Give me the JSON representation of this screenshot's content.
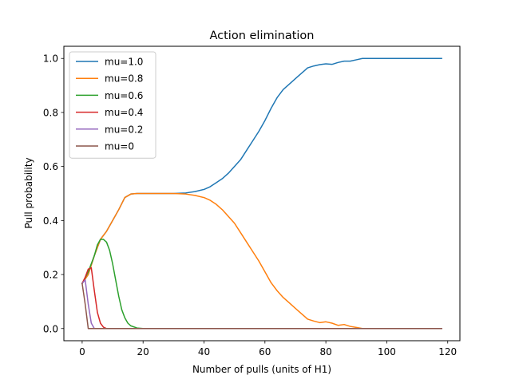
{
  "chart_data": {
    "type": "line",
    "title": "Action elimination",
    "xlabel": "Number of pulls (units of H1)",
    "ylabel": "Pull probability",
    "xlim": [
      -6,
      124
    ],
    "ylim": [
      -0.045,
      1.045
    ],
    "xticks": [
      0,
      20,
      40,
      60,
      80,
      100,
      120
    ],
    "xtick_labels": [
      "0",
      "20",
      "40",
      "60",
      "80",
      "100",
      "120"
    ],
    "yticks": [
      0.0,
      0.2,
      0.4,
      0.6,
      0.8,
      1.0
    ],
    "ytick_labels": [
      "0.0",
      "0.2",
      "0.4",
      "0.6",
      "0.8",
      "1.0"
    ],
    "grid": false,
    "legend_position": "upper-left",
    "series": [
      {
        "name": "mu=1.0",
        "color": "#1f77b4",
        "points": [
          [
            0,
            0.167
          ],
          [
            2,
            0.2
          ],
          [
            4,
            0.27
          ],
          [
            6,
            0.33
          ],
          [
            8,
            0.36
          ],
          [
            10,
            0.4
          ],
          [
            12,
            0.44
          ],
          [
            14,
            0.485
          ],
          [
            16,
            0.498
          ],
          [
            18,
            0.5
          ],
          [
            20,
            0.5
          ],
          [
            25,
            0.5
          ],
          [
            30,
            0.5
          ],
          [
            34,
            0.502
          ],
          [
            37,
            0.507
          ],
          [
            40,
            0.515
          ],
          [
            42,
            0.525
          ],
          [
            44,
            0.54
          ],
          [
            46,
            0.555
          ],
          [
            48,
            0.575
          ],
          [
            50,
            0.6
          ],
          [
            52,
            0.625
          ],
          [
            54,
            0.66
          ],
          [
            56,
            0.695
          ],
          [
            58,
            0.73
          ],
          [
            60,
            0.77
          ],
          [
            62,
            0.815
          ],
          [
            64,
            0.855
          ],
          [
            66,
            0.885
          ],
          [
            68,
            0.905
          ],
          [
            70,
            0.925
          ],
          [
            72,
            0.945
          ],
          [
            74,
            0.965
          ],
          [
            76,
            0.972
          ],
          [
            78,
            0.977
          ],
          [
            80,
            0.98
          ],
          [
            82,
            0.978
          ],
          [
            84,
            0.985
          ],
          [
            86,
            0.99
          ],
          [
            88,
            0.99
          ],
          [
            90,
            0.995
          ],
          [
            92,
            1.0
          ],
          [
            95,
            1.0
          ],
          [
            100,
            1.0
          ],
          [
            105,
            1.0
          ],
          [
            110,
            1.0
          ],
          [
            115,
            1.0
          ],
          [
            118,
            1.0
          ]
        ]
      },
      {
        "name": "mu=0.8",
        "color": "#ff7f0e",
        "points": [
          [
            0,
            0.167
          ],
          [
            2,
            0.2
          ],
          [
            4,
            0.27
          ],
          [
            6,
            0.33
          ],
          [
            8,
            0.36
          ],
          [
            10,
            0.4
          ],
          [
            12,
            0.44
          ],
          [
            14,
            0.485
          ],
          [
            16,
            0.498
          ],
          [
            18,
            0.5
          ],
          [
            20,
            0.5
          ],
          [
            25,
            0.5
          ],
          [
            30,
            0.5
          ],
          [
            34,
            0.498
          ],
          [
            37,
            0.493
          ],
          [
            40,
            0.485
          ],
          [
            42,
            0.475
          ],
          [
            44,
            0.46
          ],
          [
            46,
            0.44
          ],
          [
            48,
            0.415
          ],
          [
            50,
            0.39
          ],
          [
            52,
            0.355
          ],
          [
            54,
            0.32
          ],
          [
            56,
            0.285
          ],
          [
            58,
            0.25
          ],
          [
            60,
            0.21
          ],
          [
            62,
            0.17
          ],
          [
            64,
            0.14
          ],
          [
            66,
            0.115
          ],
          [
            68,
            0.095
          ],
          [
            70,
            0.075
          ],
          [
            72,
            0.055
          ],
          [
            74,
            0.035
          ],
          [
            76,
            0.028
          ],
          [
            78,
            0.022
          ],
          [
            80,
            0.025
          ],
          [
            82,
            0.02
          ],
          [
            84,
            0.012
          ],
          [
            86,
            0.015
          ],
          [
            88,
            0.008
          ],
          [
            90,
            0.004
          ],
          [
            92,
            0.0
          ],
          [
            95,
            0.0
          ],
          [
            100,
            0.0
          ],
          [
            105,
            0.0
          ],
          [
            110,
            0.0
          ],
          [
            115,
            0.0
          ],
          [
            118,
            0.0
          ]
        ]
      },
      {
        "name": "mu=0.6",
        "color": "#2ca02c",
        "points": [
          [
            0,
            0.167
          ],
          [
            2,
            0.21
          ],
          [
            4,
            0.27
          ],
          [
            5,
            0.31
          ],
          [
            6,
            0.33
          ],
          [
            7,
            0.33
          ],
          [
            8,
            0.32
          ],
          [
            9,
            0.29
          ],
          [
            10,
            0.24
          ],
          [
            11,
            0.18
          ],
          [
            12,
            0.12
          ],
          [
            13,
            0.07
          ],
          [
            14,
            0.04
          ],
          [
            15,
            0.02
          ],
          [
            16,
            0.01
          ],
          [
            18,
            0.002
          ],
          [
            20,
            0.0
          ],
          [
            40,
            0.0
          ],
          [
            60,
            0.0
          ],
          [
            80,
            0.0
          ],
          [
            100,
            0.0
          ],
          [
            118,
            0.0
          ]
        ]
      },
      {
        "name": "mu=0.4",
        "color": "#d62728",
        "points": [
          [
            0,
            0.167
          ],
          [
            1,
            0.19
          ],
          [
            2,
            0.22
          ],
          [
            3,
            0.225
          ],
          [
            4,
            0.14
          ],
          [
            5,
            0.06
          ],
          [
            6,
            0.02
          ],
          [
            7,
            0.005
          ],
          [
            8,
            0.0
          ],
          [
            20,
            0.0
          ],
          [
            40,
            0.0
          ],
          [
            60,
            0.0
          ],
          [
            80,
            0.0
          ],
          [
            100,
            0.0
          ],
          [
            118,
            0.0
          ]
        ]
      },
      {
        "name": "mu=0.2",
        "color": "#9467bd",
        "points": [
          [
            0,
            0.167
          ],
          [
            1,
            0.18
          ],
          [
            2,
            0.09
          ],
          [
            3,
            0.02
          ],
          [
            4,
            0.0
          ],
          [
            20,
            0.0
          ],
          [
            40,
            0.0
          ],
          [
            60,
            0.0
          ],
          [
            80,
            0.0
          ],
          [
            100,
            0.0
          ],
          [
            118,
            0.0
          ]
        ]
      },
      {
        "name": "mu=0",
        "color": "#8c564b",
        "points": [
          [
            0,
            0.167
          ],
          [
            1,
            0.09
          ],
          [
            2,
            0.0
          ],
          [
            20,
            0.0
          ],
          [
            40,
            0.0
          ],
          [
            60,
            0.0
          ],
          [
            80,
            0.0
          ],
          [
            100,
            0.0
          ],
          [
            118,
            0.0
          ]
        ]
      }
    ]
  }
}
